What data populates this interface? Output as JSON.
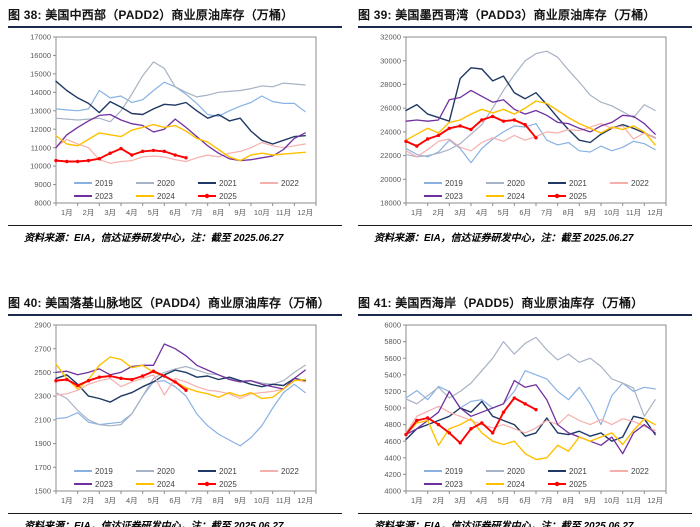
{
  "page": {
    "background": "#FFFFFF",
    "accent_rule_color": "#1B2A4A"
  },
  "panels": [
    {
      "title": "图 38:  美国中西部（PADD2）商业原油库存（万桶）",
      "source": "资料来源：EIA，信达证券研发中心，注：截至 2025.06.27"
    },
    {
      "title": "图 39:  美国墨西哥湾（PADD3）商业原油库存（万桶）",
      "source": "资料来源：EIA，信达证券研发中心，注：截至 2025.06.27"
    },
    {
      "title": "图 40:  美国落基山脉地区（PADD4）商业原油库存（万桶）",
      "source": "资料来源：EIA，信达证券研发中心，注：截至 2025.06.27"
    },
    {
      "title": "图 41:  美国西海岸（PADD5）商业原油库存（万桶）",
      "source": "资料来源：EIA，信达证券研发中心，注：截至 2025.06.27"
    }
  ],
  "axis_style": {
    "tick_label_color": "#595959",
    "plot_border_color": "#8E8E8E",
    "legend_text_color": "#404040"
  },
  "chart_data": [
    {
      "type": "line",
      "title": "美国中西部（PADD2）商业原油库存",
      "unit": "万桶",
      "ylim": [
        8000,
        17000
      ],
      "y_ticks": [
        8000,
        9000,
        10000,
        11000,
        12000,
        13000,
        14000,
        15000,
        16000,
        17000
      ],
      "x_tick_labels": [
        "1月",
        "2月",
        "3月",
        "4月",
        "5月",
        "6月",
        "7月",
        "8月",
        "9月",
        "10月",
        "11月",
        "12月"
      ],
      "x_start_month": 1,
      "x_step_months": 0.5,
      "series": [
        {
          "name": "2019",
          "color": "#89B2E3",
          "width": 1.2,
          "marker": false,
          "values": [
            13100,
            13050,
            13000,
            13100,
            14100,
            13700,
            13800,
            13450,
            13600,
            14100,
            14550,
            14300,
            13900,
            13400,
            12800,
            12700,
            13000,
            13250,
            13450,
            13800,
            13500,
            13400,
            13400,
            12950
          ]
        },
        {
          "name": "2020",
          "color": "#A7B3C4",
          "width": 1.2,
          "marker": false,
          "values": [
            12600,
            12550,
            12500,
            12550,
            12600,
            12400,
            13000,
            13900,
            14900,
            15650,
            15300,
            14300,
            14000,
            13750,
            13850,
            14000,
            14050,
            14100,
            14200,
            14350,
            14300,
            14500,
            14450,
            14400
          ]
        },
        {
          "name": "2021",
          "color": "#1F3864",
          "width": 1.4,
          "marker": false,
          "values": [
            14600,
            14100,
            13700,
            13400,
            12900,
            13500,
            13200,
            12850,
            12800,
            13100,
            13350,
            13300,
            13450,
            13000,
            12600,
            12800,
            12450,
            12600,
            11900,
            11400,
            11200,
            11400,
            11600,
            11650
          ]
        },
        {
          "name": "2022",
          "color": "#F5AFAD",
          "width": 1.2,
          "marker": false,
          "values": [
            11050,
            11450,
            11200,
            11000,
            10350,
            10150,
            10250,
            10300,
            10500,
            10550,
            10500,
            10350,
            10250,
            10450,
            10600,
            10500,
            10700,
            10800,
            11000,
            11280,
            11100,
            11000,
            11100,
            11200
          ]
        },
        {
          "name": "2023",
          "color": "#7030A0",
          "width": 1.3,
          "marker": false,
          "values": [
            11000,
            11700,
            12100,
            12450,
            12750,
            12800,
            12500,
            12300,
            12200,
            11850,
            12000,
            12550,
            12100,
            11600,
            11100,
            10700,
            10400,
            10300,
            10350,
            10450,
            10550,
            10900,
            11500,
            11800
          ]
        },
        {
          "name": "2024",
          "color": "#FFC000",
          "width": 1.4,
          "marker": false,
          "values": [
            11650,
            11200,
            11100,
            11450,
            11800,
            11700,
            11600,
            11950,
            12100,
            12250,
            12100,
            12200,
            11900,
            11500,
            11300,
            10900,
            10500,
            10300,
            10600,
            10700,
            10600,
            10650,
            10700,
            10750
          ]
        },
        {
          "name": "2025",
          "color": "#FF0000",
          "width": 1.9,
          "marker": true,
          "values": [
            10300,
            10250,
            10250,
            10300,
            10400,
            10700,
            10950,
            10600,
            10800,
            10850,
            10800,
            10600,
            10450
          ]
        }
      ]
    },
    {
      "type": "line",
      "title": "美国墨西哥湾（PADD3）商业原油库存",
      "unit": "万桶",
      "ylim": [
        18000,
        32000
      ],
      "y_ticks": [
        18000,
        20000,
        22000,
        24000,
        26000,
        28000,
        30000,
        32000
      ],
      "x_tick_labels": [
        "1月",
        "2月",
        "3月",
        "4月",
        "5月",
        "6月",
        "7月",
        "8月",
        "9月",
        "10月",
        "11月",
        "12月"
      ],
      "x_start_month": 1,
      "x_step_months": 0.5,
      "series": [
        {
          "name": "2019",
          "color": "#89B2E3",
          "width": 1.2,
          "marker": false,
          "values": [
            22600,
            22100,
            21900,
            22300,
            23300,
            22600,
            21400,
            22600,
            23400,
            24000,
            24500,
            24400,
            24700,
            23300,
            22900,
            23100,
            22400,
            22300,
            22800,
            22400,
            22700,
            23200,
            23000,
            22500
          ]
        },
        {
          "name": "2020",
          "color": "#A7B3C4",
          "width": 1.2,
          "marker": false,
          "values": [
            22100,
            21900,
            22000,
            22200,
            22500,
            23000,
            23800,
            24600,
            26000,
            27500,
            28800,
            30000,
            30600,
            30800,
            30300,
            29200,
            28200,
            27100,
            26500,
            26200,
            25700,
            25200,
            26300,
            25800
          ]
        },
        {
          "name": "2021",
          "color": "#1F3864",
          "width": 1.4,
          "marker": false,
          "values": [
            25800,
            26300,
            25500,
            25200,
            24900,
            28500,
            29400,
            29300,
            28300,
            28700,
            27300,
            26800,
            27300,
            26300,
            25200,
            24200,
            23300,
            23100,
            23800,
            24300,
            24600,
            24300,
            23900,
            23500
          ]
        },
        {
          "name": "2022",
          "color": "#F5AFAD",
          "width": 1.2,
          "marker": false,
          "values": [
            22400,
            21900,
            22500,
            23200,
            23400,
            22700,
            22400,
            23100,
            23500,
            23200,
            23700,
            23300,
            23600,
            24000,
            23900,
            24200,
            24100,
            24400,
            24700,
            24300,
            24500,
            23400,
            23900,
            23500
          ]
        },
        {
          "name": "2023",
          "color": "#7030A0",
          "width": 1.3,
          "marker": false,
          "values": [
            24900,
            25000,
            24900,
            25000,
            26700,
            26900,
            27500,
            27000,
            26500,
            26700,
            25900,
            25500,
            25800,
            25400,
            24800,
            24700,
            24300,
            24000,
            24500,
            24800,
            25400,
            25300,
            24700,
            23800
          ]
        },
        {
          "name": "2024",
          "color": "#FFC000",
          "width": 1.4,
          "marker": false,
          "values": [
            23300,
            23800,
            24300,
            23900,
            24800,
            25000,
            25500,
            25900,
            25600,
            25900,
            25500,
            26000,
            26600,
            26400,
            25800,
            25200,
            24700,
            24300,
            23900,
            24400,
            24200,
            24500,
            24000,
            22900
          ]
        },
        {
          "name": "2025",
          "color": "#FF0000",
          "width": 1.9,
          "marker": true,
          "values": [
            23200,
            22800,
            23400,
            23700,
            24300,
            24500,
            24200,
            25000,
            25300,
            24900,
            25000,
            24600,
            23500
          ]
        }
      ]
    },
    {
      "type": "line",
      "title": "美国落基山脉地区（PADD4）商业原油库存",
      "unit": "万桶",
      "ylim": [
        1500,
        2900
      ],
      "y_ticks": [
        1500,
        1700,
        1900,
        2100,
        2300,
        2500,
        2700,
        2900
      ],
      "x_tick_labels": [
        "1月",
        "2月",
        "3月",
        "4月",
        "5月",
        "6月",
        "7月",
        "8月",
        "9月",
        "10月",
        "11月",
        "12月"
      ],
      "x_start_month": 1,
      "x_step_months": 0.5,
      "series": [
        {
          "name": "2019",
          "color": "#89B2E3",
          "width": 1.2,
          "marker": false,
          "values": [
            2110,
            2120,
            2160,
            2080,
            2060,
            2070,
            2080,
            2150,
            2300,
            2420,
            2430,
            2380,
            2300,
            2150,
            2050,
            1980,
            1930,
            1880,
            1950,
            2050,
            2200,
            2330,
            2400,
            2330
          ]
        },
        {
          "name": "2020",
          "color": "#A7B3C4",
          "width": 1.2,
          "marker": false,
          "values": [
            2330,
            2280,
            2180,
            2100,
            2060,
            2050,
            2060,
            2150,
            2300,
            2450,
            2500,
            2530,
            2550,
            2520,
            2490,
            2480,
            2450,
            2430,
            2430,
            2410,
            2400,
            2430,
            2500,
            2560
          ]
        },
        {
          "name": "2021",
          "color": "#1F3864",
          "width": 1.4,
          "marker": false,
          "values": [
            2450,
            2480,
            2400,
            2300,
            2280,
            2250,
            2300,
            2330,
            2380,
            2420,
            2480,
            2520,
            2500,
            2460,
            2470,
            2440,
            2460,
            2430,
            2400,
            2380,
            2400,
            2390,
            2450,
            2430
          ]
        },
        {
          "name": "2022",
          "color": "#F5AFAD",
          "width": 1.2,
          "marker": false,
          "values": [
            2310,
            2320,
            2350,
            2400,
            2430,
            2450,
            2380,
            2420,
            2450,
            2480,
            2310,
            2450,
            2420,
            2380,
            2350,
            2340,
            2320,
            2280,
            2320,
            2330,
            2340,
            2360,
            2440,
            2420
          ]
        },
        {
          "name": "2023",
          "color": "#7030A0",
          "width": 1.3,
          "marker": false,
          "values": [
            2500,
            2510,
            2480,
            2500,
            2530,
            2480,
            2500,
            2550,
            2560,
            2560,
            2740,
            2700,
            2640,
            2560,
            2520,
            2480,
            2440,
            2420,
            2430,
            2400,
            2380,
            2360,
            2450,
            2520
          ]
        },
        {
          "name": "2024",
          "color": "#FFC000",
          "width": 1.4,
          "marker": false,
          "values": [
            2570,
            2450,
            2360,
            2440,
            2560,
            2630,
            2610,
            2540,
            2560,
            2500,
            2470,
            2420,
            2370,
            2340,
            2320,
            2290,
            2330,
            2300,
            2330,
            2280,
            2290,
            2360,
            2430,
            2440
          ]
        },
        {
          "name": "2025",
          "color": "#FF0000",
          "width": 1.9,
          "marker": true,
          "values": [
            2430,
            2440,
            2390,
            2430,
            2460,
            2470,
            2450,
            2440,
            2470,
            2510,
            2470,
            2420,
            2350
          ]
        }
      ]
    },
    {
      "type": "line",
      "title": "美国西海岸（PADD5）商业原油库存",
      "unit": "万桶",
      "ylim": [
        4000,
        6000
      ],
      "y_ticks": [
        4000,
        4200,
        4400,
        4600,
        4800,
        5000,
        5200,
        5400,
        5600,
        5800,
        6000
      ],
      "x_tick_labels": [
        "1月",
        "2月",
        "3月",
        "4月",
        "5月",
        "6月",
        "7月",
        "8月",
        "9月",
        "10月",
        "11月",
        "12月"
      ],
      "x_start_month": 1,
      "x_step_months": 0.5,
      "series": [
        {
          "name": "2019",
          "color": "#89B2E3",
          "width": 1.2,
          "marker": false,
          "values": [
            5120,
            5210,
            5100,
            5260,
            5200,
            5000,
            5080,
            5100,
            5000,
            5050,
            5200,
            5450,
            5400,
            5350,
            5200,
            5100,
            5250,
            5050,
            4800,
            5150,
            5300,
            5200,
            5250,
            5230
          ]
        },
        {
          "name": "2020",
          "color": "#A7B3C4",
          "width": 1.2,
          "marker": false,
          "values": [
            5110,
            5050,
            5150,
            5250,
            5120,
            5200,
            5300,
            5450,
            5600,
            5800,
            5650,
            5780,
            5850,
            5700,
            5580,
            5650,
            5550,
            5600,
            5500,
            5350,
            5300,
            5240,
            4900,
            5100
          ]
        },
        {
          "name": "2021",
          "color": "#1F3864",
          "width": 1.4,
          "marker": false,
          "values": [
            4620,
            4750,
            4800,
            4850,
            4900,
            5000,
            4950,
            5080,
            4900,
            4850,
            4800,
            4660,
            4700,
            4880,
            4700,
            4680,
            4720,
            4660,
            4700,
            4600,
            4650,
            4900,
            4870,
            4680
          ]
        },
        {
          "name": "2022",
          "color": "#F5AFAD",
          "width": 1.2,
          "marker": false,
          "values": [
            4700,
            4900,
            4960,
            5020,
            4950,
            4900,
            4850,
            4800,
            4760,
            4800,
            4750,
            4700,
            4760,
            4850,
            4800,
            4920,
            4850,
            4800,
            4860,
            4800,
            4870,
            4840,
            4780,
            4730
          ]
        },
        {
          "name": "2023",
          "color": "#7030A0",
          "width": 1.3,
          "marker": false,
          "values": [
            4680,
            4750,
            4850,
            4950,
            5200,
            5000,
            4900,
            4950,
            5000,
            5050,
            5330,
            5250,
            5280,
            5100,
            4800,
            4700,
            4650,
            4600,
            4550,
            4650,
            4450,
            4700,
            4800,
            4700
          ]
        },
        {
          "name": "2024",
          "color": "#FFC000",
          "width": 1.4,
          "marker": false,
          "values": [
            4680,
            4820,
            4850,
            4550,
            4750,
            4800,
            4870,
            4700,
            4600,
            4560,
            4600,
            4450,
            4380,
            4400,
            4550,
            4480,
            4650,
            4600,
            4650,
            4700,
            4560,
            4730,
            4870,
            4800
          ]
        },
        {
          "name": "2025",
          "color": "#FF0000",
          "width": 1.9,
          "marker": true,
          "values": [
            4680,
            4850,
            4880,
            4800,
            4700,
            4580,
            4750,
            4820,
            4700,
            4950,
            5120,
            5050,
            4980
          ]
        }
      ]
    }
  ]
}
